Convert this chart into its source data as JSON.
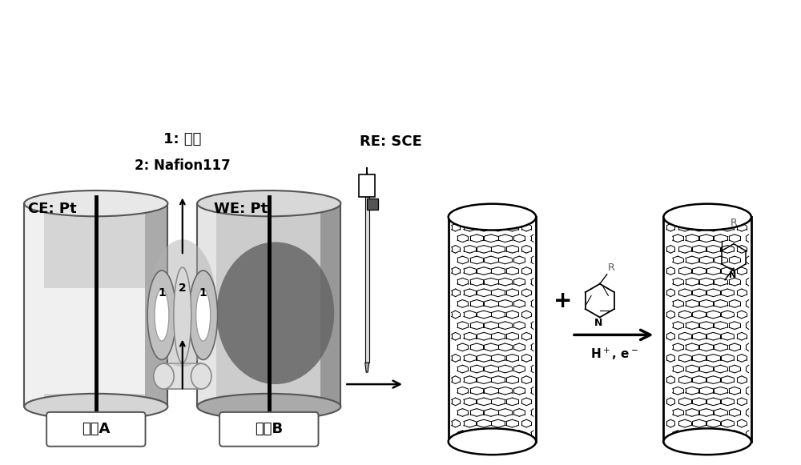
{
  "bg_color": "#ffffff",
  "label_ce": "CE: Pt",
  "label_we": "WE: Pt",
  "label_re": "RE: SCE",
  "label_1": "1: 垫片",
  "label_2": "2: Nafion117",
  "label_sol_a": "溶液A",
  "label_sol_b": "溶液B",
  "black": "#000000",
  "white": "#ffffff",
  "gray_light": "#d8d8d8",
  "gray_mid": "#aaaaaa",
  "gray_dark": "#777777",
  "edge_col": "#444444"
}
